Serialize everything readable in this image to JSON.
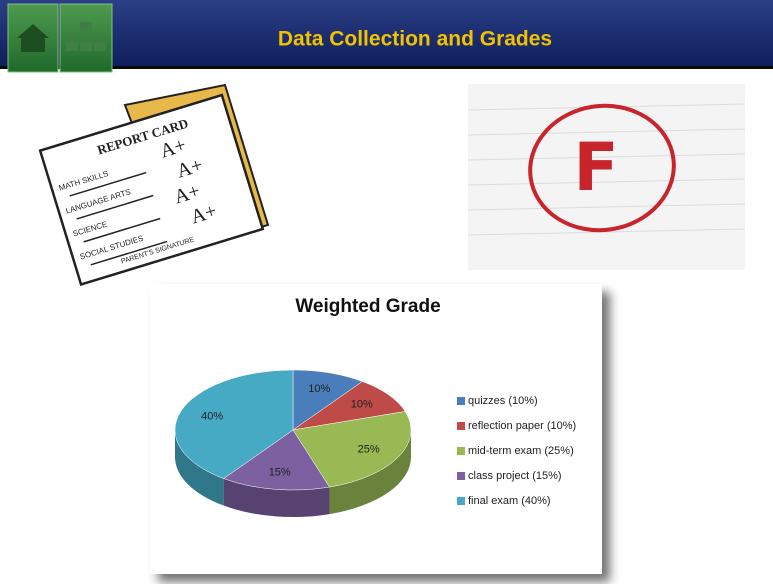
{
  "header": {
    "title": "Data Collection and Grades"
  },
  "report_card": {
    "heading": "REPORT CARD",
    "subjects": [
      "MATH SKILLS",
      "LANGUAGE ARTS",
      "SCIENCE",
      "SOCIAL STUDIES"
    ],
    "grades": [
      "A+",
      "A+",
      "A+",
      "A+"
    ],
    "footer": "PARENT'S SIGNATURE"
  },
  "grade_paper": {
    "grade": "F"
  },
  "chart_data": {
    "type": "pie",
    "title": "Weighted Grade",
    "categories": [
      "quizzes (10%)",
      "reflection paper  (10%)",
      "mid-term exam (25%)",
      "class project (15%)",
      "final exam (40%)"
    ],
    "values": [
      10,
      10,
      25,
      15,
      40
    ],
    "value_labels": [
      "10%",
      "10%",
      "25%",
      "15%",
      "40%"
    ],
    "colors": [
      "#4a7ebb",
      "#be4b48",
      "#98b954",
      "#7d60a0",
      "#46aac5"
    ],
    "legend": "right"
  }
}
